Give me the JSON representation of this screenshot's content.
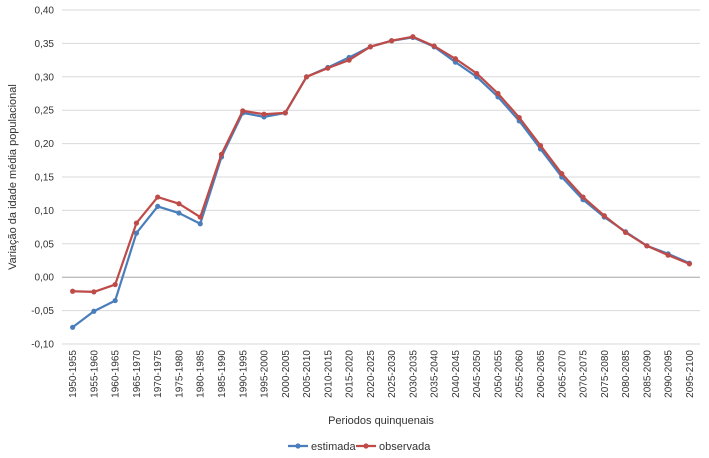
{
  "chart_data": {
    "type": "line",
    "title": "",
    "xlabel": "Periodos quinquenais",
    "ylabel": "Variação da idade média populacional",
    "ylim": [
      -0.1,
      0.4
    ],
    "ytick_step": 0.05,
    "ytick_labels": [
      "-0,10",
      "-0,05",
      "0,00",
      "0,05",
      "0,10",
      "0,15",
      "0,20",
      "0,25",
      "0,30",
      "0,35",
      "0,40"
    ],
    "grid": "horizontal",
    "legend_position": "bottom",
    "categories": [
      "1950-1955",
      "1955-1960",
      "1960-1965",
      "1965-1970",
      "1970-1975",
      "1975-1980",
      "1980-1985",
      "1985-1990",
      "1990-1995",
      "1995-2000",
      "2000-2005",
      "2005-2010",
      "2010-2015",
      "2015-2020",
      "2020-2025",
      "2025-2030",
      "2030-2035",
      "2035-2040",
      "2040-2045",
      "2045-2050",
      "2050-2055",
      "2055-2060",
      "2060-2065",
      "2065-2070",
      "2070-2075",
      "2075-2080",
      "2080-2085",
      "2085-2090",
      "2090-2095",
      "2095-2100"
    ],
    "series": [
      {
        "name": "estimada",
        "color": "#4a7ebb",
        "values": [
          -0.075,
          -0.051,
          -0.035,
          0.066,
          0.106,
          0.096,
          0.08,
          0.18,
          0.246,
          0.24,
          0.246,
          0.3,
          0.314,
          0.329,
          0.345,
          0.354,
          0.359,
          0.345,
          0.322,
          0.3,
          0.27,
          0.234,
          0.192,
          0.15,
          0.116,
          0.09,
          0.068,
          0.047,
          0.035,
          0.021
        ]
      },
      {
        "name": "observada",
        "color": "#be4b48",
        "values": [
          -0.021,
          -0.022,
          -0.011,
          0.081,
          0.12,
          0.11,
          0.09,
          0.184,
          0.249,
          0.244,
          0.246,
          0.3,
          0.313,
          0.325,
          0.345,
          0.354,
          0.36,
          0.346,
          0.327,
          0.305,
          0.275,
          0.239,
          0.197,
          0.155,
          0.12,
          0.092,
          0.067,
          0.047,
          0.033,
          0.02
        ]
      }
    ]
  }
}
